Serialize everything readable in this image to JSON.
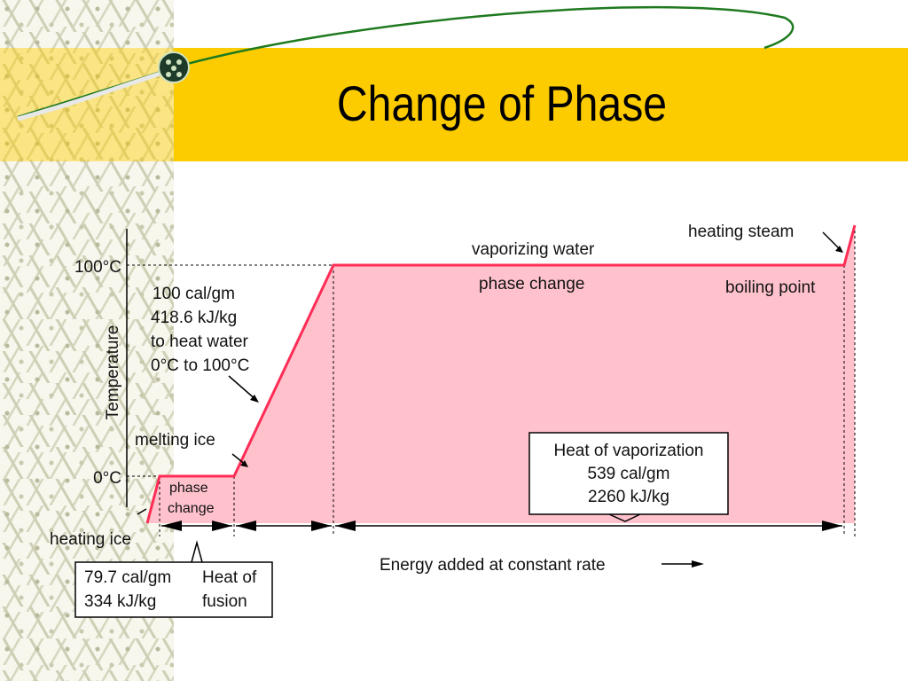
{
  "title": "Change of Phase",
  "colors": {
    "title_bar": "#fccc00",
    "curve": "#ff2c55",
    "fill": "#ffc2cc",
    "swoosh": "#1f7a1f"
  },
  "diagram": {
    "y_axis_label": "Temperature",
    "ticks": {
      "top": "100°C",
      "bottom": "0°C"
    },
    "labels": {
      "heating_steam": "heating steam",
      "vaporizing_water": "vaporizing water",
      "phase_change_top": "phase change",
      "boiling_point": "boiling point",
      "heat_water_1": "100 cal/gm",
      "heat_water_2": "418.6 kJ/kg",
      "heat_water_3": "to heat water",
      "heat_water_4": "0°C to 100°C",
      "melting_ice": "melting ice",
      "phase_change_small_1": "phase",
      "phase_change_small_2": "change",
      "heating_ice": "heating ice",
      "vaporization_1": "Heat of vaporization",
      "vaporization_2": "539 cal/gm",
      "vaporization_3": "2260 kJ/kg",
      "fusion_1": "79.7 cal/gm",
      "fusion_2": "334 kJ/kg",
      "fusion_3": "Heat of",
      "fusion_4": "fusion",
      "energy_axis": "Energy added at constant rate"
    }
  }
}
